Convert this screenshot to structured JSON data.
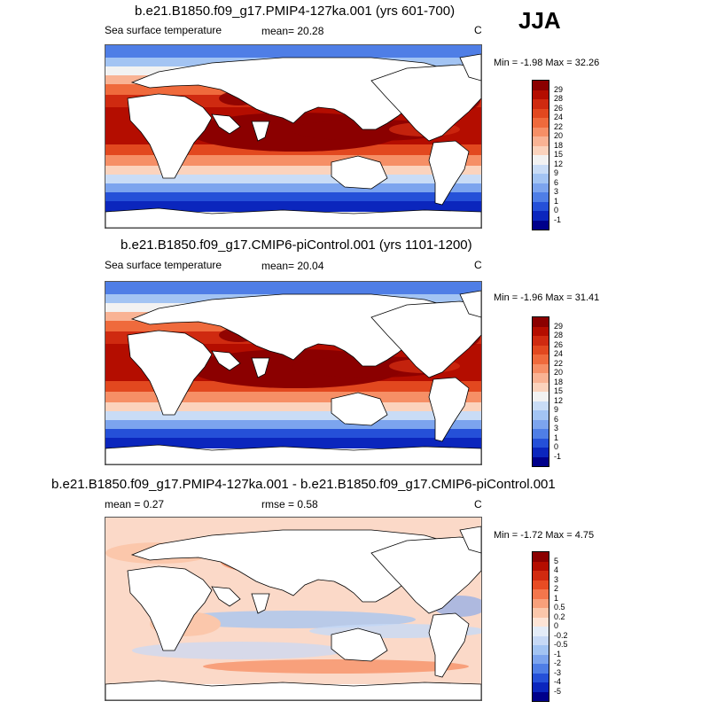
{
  "season": "JJA",
  "panels": [
    {
      "title": "b.e21.B1850.f09_g17.PMIP4-127ka.001 (yrs 601-700)",
      "left_label": "Sea surface temperature",
      "center_label": "mean=  20.28",
      "right_label": "C",
      "minmax": "Min =  -1.98 Max =  32.26",
      "colorbar_labels": [
        "29",
        "28",
        "26",
        "24",
        "22",
        "20",
        "18",
        "15",
        "12",
        "9",
        "6",
        "3",
        "1",
        "0",
        "-1"
      ],
      "colors": [
        "#8b0000",
        "#b40d00",
        "#cf2a10",
        "#e2481f",
        "#ef6a3c",
        "#f68f66",
        "#f9b394",
        "#fbd3bd",
        "#f2f2f2",
        "#c9dcf6",
        "#a3c4f3",
        "#7ca4ee",
        "#4f7ee6",
        "#2550d8",
        "#0b26bd",
        "#00008b"
      ]
    },
    {
      "title": "b.e21.B1850.f09_g17.CMIP6-piControl.001 (yrs 1101-1200)",
      "left_label": "Sea surface temperature",
      "center_label": "mean=  20.04",
      "right_label": "C",
      "minmax": "Min =  -1.96 Max =  31.41",
      "colorbar_labels": [
        "29",
        "28",
        "26",
        "24",
        "22",
        "20",
        "18",
        "15",
        "12",
        "9",
        "6",
        "3",
        "1",
        "0",
        "-1"
      ],
      "colors": [
        "#8b0000",
        "#b40d00",
        "#cf2a10",
        "#e2481f",
        "#ef6a3c",
        "#f68f66",
        "#f9b394",
        "#fbd3bd",
        "#f2f2f2",
        "#c9dcf6",
        "#a3c4f3",
        "#7ca4ee",
        "#4f7ee6",
        "#2550d8",
        "#0b26bd",
        "#00008b"
      ]
    },
    {
      "title": "b.e21.B1850.f09_g17.PMIP4-127ka.001 - b.e21.B1850.f09_g17.CMIP6-piControl.001",
      "left_label": "mean =   0.27",
      "center_label": "rmse =   0.58",
      "right_label": "C",
      "minmax": "Min =  -1.72 Max =   4.75",
      "colorbar_labels": [
        "5",
        "4",
        "3",
        "2",
        "1",
        "0.5",
        "0.2",
        "0",
        "-0.2",
        "-0.5",
        "-1",
        "-2",
        "-3",
        "-4",
        "-5"
      ],
      "colors": [
        "#8b0000",
        "#b40d00",
        "#d12a10",
        "#e84c24",
        "#f4764c",
        "#f8a07b",
        "#fbc7ab",
        "#fde4d6",
        "#e4ecf8",
        "#c7d9f6",
        "#a3c4f3",
        "#7ca4ee",
        "#4f7ee6",
        "#2550d8",
        "#0b26bd",
        "#00008b"
      ]
    }
  ]
}
